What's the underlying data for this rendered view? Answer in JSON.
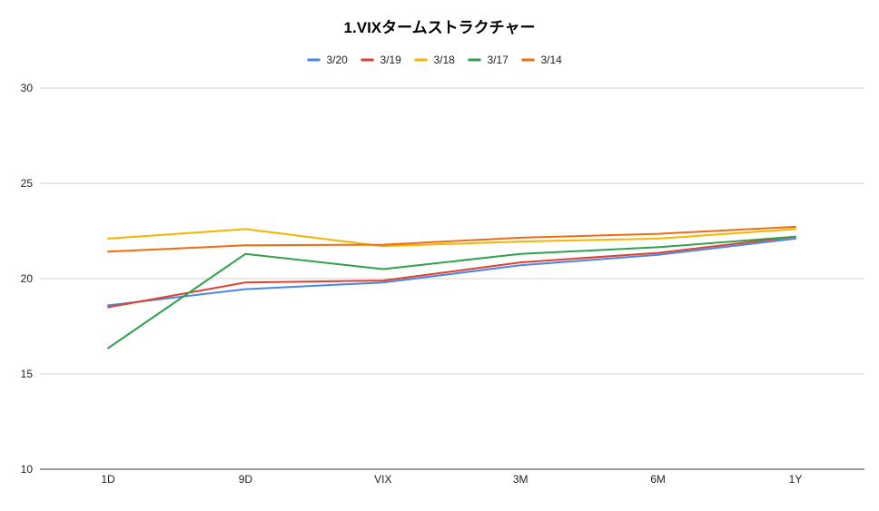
{
  "chart_data": {
    "type": "line",
    "title": "1.VIXタームストラクチャー",
    "xlabel": "",
    "ylabel": "",
    "categories": [
      "1D",
      "9D",
      "VIX",
      "3M",
      "6M",
      "1Y"
    ],
    "ylim": [
      10,
      30
    ],
    "yticks": [
      10,
      15,
      20,
      25,
      30
    ],
    "grid": true,
    "legend_position": "top",
    "series": [
      {
        "name": "3/20",
        "color": "#4a86e8",
        "values": [
          18.6,
          19.45,
          19.8,
          20.7,
          21.25,
          22.1
        ]
      },
      {
        "name": "3/19",
        "color": "#e0412f",
        "values": [
          18.5,
          19.8,
          19.9,
          20.85,
          21.35,
          22.2
        ]
      },
      {
        "name": "3/18",
        "color": "#f4b400",
        "values": [
          22.1,
          22.6,
          21.7,
          21.95,
          22.1,
          22.6
        ]
      },
      {
        "name": "3/17",
        "color": "#2ea24c",
        "values": [
          16.35,
          21.3,
          20.5,
          21.3,
          21.65,
          22.2
        ]
      },
      {
        "name": "3/14",
        "color": "#ef6c13",
        "values": [
          21.42,
          21.75,
          21.78,
          22.15,
          22.35,
          22.72
        ]
      }
    ]
  }
}
